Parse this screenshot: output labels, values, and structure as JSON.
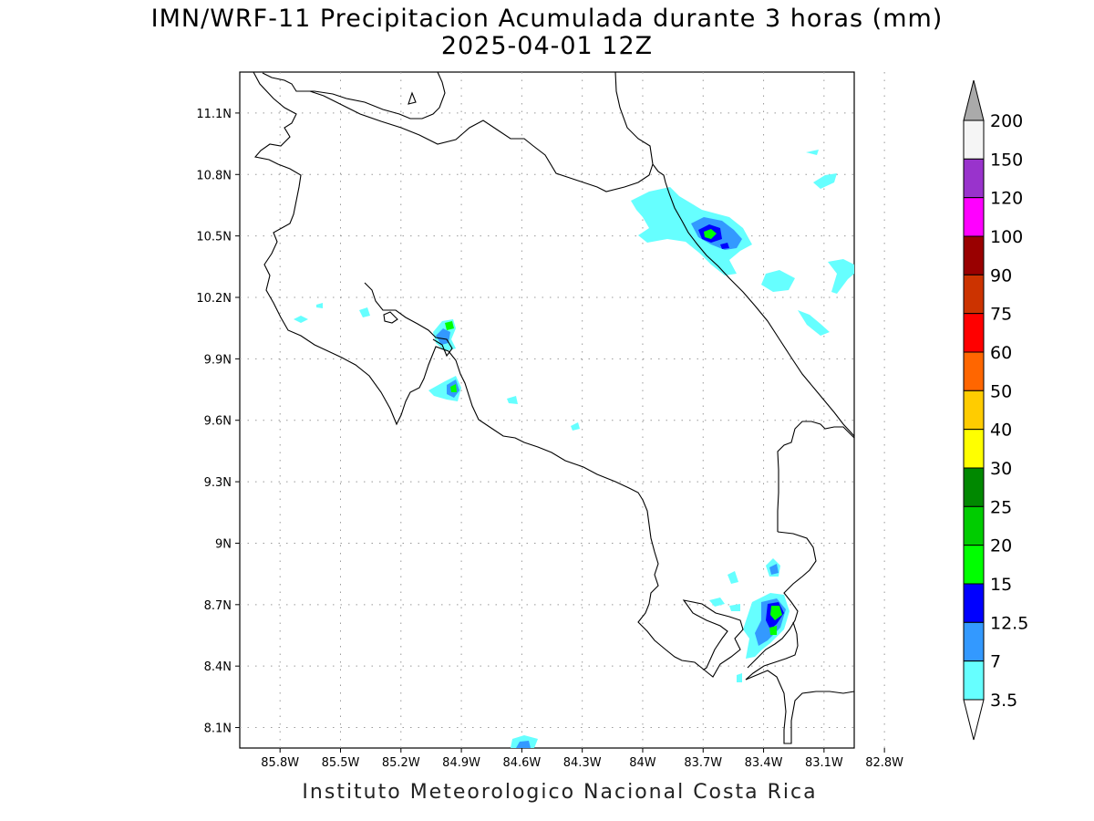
{
  "title_line1": "IMN/WRF-11 Precipitacion Acumulada durante 3 horas (mm)",
  "title_line2": "2025-04-01 12Z",
  "footer": "Instituto Meteorologico Nacional Costa Rica",
  "map": {
    "lon_range": [
      -86.0,
      -82.95
    ],
    "lat_range": [
      8.0,
      11.3
    ],
    "lon_ticks": [
      "85.8W",
      "85.5W",
      "85.2W",
      "84.9W",
      "84.6W",
      "84.3W",
      "84W",
      "83.7W",
      "83.4W",
      "83.1W",
      "82.8W"
    ],
    "lat_ticks": [
      "11.1N",
      "10.8N",
      "10.5N",
      "10.2N",
      "9.9N",
      "9.6N",
      "9.3N",
      "9N",
      "8.7N",
      "8.4N",
      "8.1N"
    ],
    "grid": true
  },
  "colorbar": {
    "levels": [
      "200",
      "150",
      "120",
      "100",
      "90",
      "75",
      "60",
      "50",
      "40",
      "30",
      "25",
      "20",
      "15",
      "12.5",
      "7",
      "3.5"
    ],
    "colors": [
      "#f5f5f5",
      "#9933cc",
      "#ff00ff",
      "#990000",
      "#cc3300",
      "#ff0000",
      "#ff6600",
      "#ffcc00",
      "#ffff00",
      "#008800",
      "#00cc00",
      "#00ff00",
      "#0000ff",
      "#3399ff",
      "#66ffff"
    ],
    "upper_arrow_color": "#aaaaaa",
    "lower_arrow_color": "#ffffff"
  }
}
